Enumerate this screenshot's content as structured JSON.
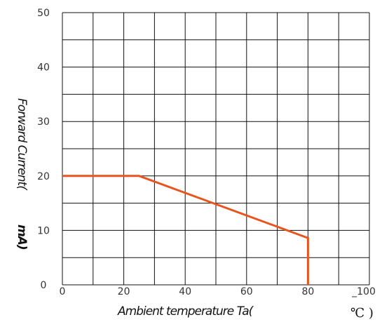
{
  "chart_data": {
    "type": "line",
    "title": "",
    "xlabel": "Ambient temperature Ta(",
    "xlabel_unit": "℃ )",
    "ylabel": "Forward Current(",
    "ylabel_unit": "mA)",
    "xlim": [
      0,
      100
    ],
    "ylim": [
      0,
      50
    ],
    "x_ticks": [
      0,
      20,
      40,
      60,
      80,
      100
    ],
    "x_tick_labels": [
      "0",
      "20",
      "40",
      "60",
      "80",
      "_100"
    ],
    "y_ticks": [
      0,
      10,
      20,
      30,
      40,
      50
    ],
    "y_tick_labels": [
      "0",
      "10",
      "20",
      "30",
      "40",
      "50"
    ],
    "grid": true,
    "x_grid_step": 10,
    "y_grid_step": 5,
    "line_color": "#e8541e",
    "series": [
      {
        "x": [
          0,
          25,
          80,
          80
        ],
        "values": [
          20,
          20,
          8.6,
          0
        ]
      }
    ]
  }
}
